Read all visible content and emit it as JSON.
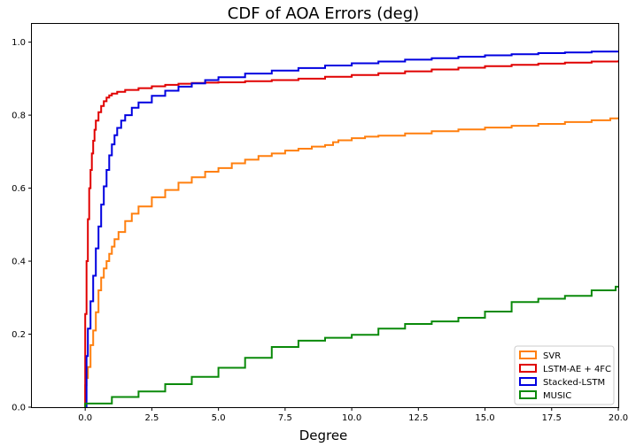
{
  "chart_data": {
    "type": "line",
    "title": "CDF of AOA Errors (deg)",
    "xlabel": "Degree",
    "ylabel": "",
    "xlim": [
      -2,
      20
    ],
    "ylim": [
      0,
      1.05
    ],
    "xticks": [
      0.0,
      2.5,
      5.0,
      7.5,
      10.0,
      12.5,
      15.0,
      17.5,
      20.0
    ],
    "xtick_labels": [
      "0.0",
      "2.5",
      "5.0",
      "7.5",
      "10.0",
      "12.5",
      "15.0",
      "17.5",
      "20.0"
    ],
    "yticks": [
      0.0,
      0.2,
      0.4,
      0.6,
      0.8,
      1.0
    ],
    "ytick_labels": [
      "0.0",
      "0.2",
      "0.4",
      "0.6",
      "0.8",
      "1.0"
    ],
    "grid": false,
    "legend_position": "bottom-right",
    "series": [
      {
        "name": "SVR",
        "color": "#ff7f0e",
        "x": [
          0.0,
          0.05,
          0.1,
          0.2,
          0.3,
          0.4,
          0.5,
          0.6,
          0.7,
          0.8,
          0.9,
          1.0,
          1.1,
          1.25,
          1.5,
          1.75,
          2.0,
          2.5,
          3.0,
          3.5,
          4.0,
          4.5,
          5.0,
          5.5,
          6.0,
          6.5,
          7.0,
          7.5,
          8.0,
          8.5,
          9.0,
          9.3,
          9.5,
          10.0,
          10.5,
          11.0,
          12.0,
          13.0,
          14.0,
          15.0,
          16.0,
          17.0,
          18.0,
          19.0,
          19.7,
          20.0
        ],
        "y": [
          0.06,
          0.08,
          0.11,
          0.17,
          0.21,
          0.26,
          0.32,
          0.355,
          0.38,
          0.4,
          0.42,
          0.44,
          0.46,
          0.48,
          0.51,
          0.53,
          0.55,
          0.575,
          0.595,
          0.615,
          0.63,
          0.645,
          0.655,
          0.668,
          0.678,
          0.688,
          0.695,
          0.703,
          0.708,
          0.714,
          0.718,
          0.726,
          0.731,
          0.737,
          0.741,
          0.744,
          0.75,
          0.756,
          0.761,
          0.766,
          0.771,
          0.776,
          0.781,
          0.786,
          0.791,
          0.794
        ]
      },
      {
        "name": "LSTM-AE + 4FC",
        "color": "#e00000",
        "x": [
          0.0,
          0.05,
          0.1,
          0.15,
          0.2,
          0.25,
          0.3,
          0.35,
          0.4,
          0.5,
          0.6,
          0.7,
          0.8,
          0.9,
          1.0,
          1.2,
          1.5,
          2.0,
          2.5,
          3.0,
          3.5,
          4.0,
          4.5,
          5.0,
          6.0,
          7.0,
          8.0,
          9.0,
          10.0,
          11.0,
          12.0,
          13.0,
          14.0,
          15.0,
          16.0,
          17.0,
          18.0,
          19.0,
          20.0
        ],
        "y": [
          0.255,
          0.4,
          0.515,
          0.6,
          0.65,
          0.695,
          0.73,
          0.76,
          0.785,
          0.808,
          0.825,
          0.838,
          0.848,
          0.854,
          0.859,
          0.864,
          0.869,
          0.874,
          0.879,
          0.883,
          0.886,
          0.888,
          0.889,
          0.89,
          0.893,
          0.896,
          0.9,
          0.905,
          0.91,
          0.915,
          0.92,
          0.925,
          0.93,
          0.934,
          0.938,
          0.941,
          0.944,
          0.947,
          0.95
        ]
      },
      {
        "name": "Stacked-LSTM",
        "color": "#0000e0",
        "x": [
          0.0,
          0.05,
          0.1,
          0.2,
          0.3,
          0.4,
          0.5,
          0.6,
          0.7,
          0.8,
          0.9,
          1.0,
          1.1,
          1.2,
          1.35,
          1.5,
          1.75,
          2.0,
          2.5,
          3.0,
          3.5,
          4.0,
          4.5,
          5.0,
          6.0,
          7.0,
          8.0,
          9.0,
          10.0,
          11.0,
          12.0,
          13.0,
          14.0,
          15.0,
          16.0,
          17.0,
          18.0,
          19.0,
          20.0
        ],
        "y": [
          0.0,
          0.14,
          0.215,
          0.29,
          0.36,
          0.435,
          0.495,
          0.555,
          0.605,
          0.65,
          0.69,
          0.72,
          0.745,
          0.765,
          0.785,
          0.8,
          0.82,
          0.835,
          0.853,
          0.867,
          0.878,
          0.887,
          0.896,
          0.904,
          0.914,
          0.922,
          0.929,
          0.936,
          0.942,
          0.947,
          0.952,
          0.956,
          0.96,
          0.964,
          0.967,
          0.97,
          0.972,
          0.974,
          0.976
        ]
      },
      {
        "name": "MUSIC",
        "color": "#0a8a0a",
        "x": [
          0.0,
          1.0,
          2.0,
          3.0,
          4.0,
          5.0,
          6.0,
          7.0,
          8.0,
          9.0,
          10.0,
          11.0,
          12.0,
          13.0,
          14.0,
          15.0,
          16.0,
          17.0,
          18.0,
          19.0,
          19.9,
          20.0
        ],
        "y": [
          0.01,
          0.028,
          0.043,
          0.063,
          0.083,
          0.108,
          0.135,
          0.165,
          0.182,
          0.19,
          0.198,
          0.215,
          0.228,
          0.235,
          0.245,
          0.262,
          0.288,
          0.297,
          0.305,
          0.32,
          0.33,
          0.33
        ]
      }
    ]
  }
}
